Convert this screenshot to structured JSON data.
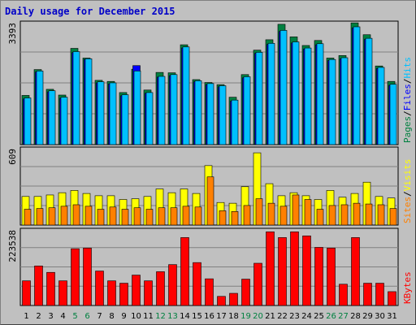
{
  "title": "Daily usage for December 2015",
  "colors": {
    "hits": "#00c0ff",
    "files": "#0000ff",
    "pages": "#008040",
    "visits": "#ffff00",
    "sites": "#ff8000",
    "kbytes": "#ff0000",
    "weekend": "#008040",
    "weekday": "#000000"
  },
  "chart_data": [
    {
      "type": "bar",
      "name": "hits-files-pages",
      "ymax_label": "3393",
      "ymax": 3393,
      "legend": [
        "Hits",
        "Files",
        "Pages"
      ],
      "legend_sep": "/",
      "categories": [
        "1",
        "2",
        "3",
        "4",
        "5",
        "6",
        "7",
        "8",
        "9",
        "10",
        "11",
        "12",
        "13",
        "14",
        "15",
        "16",
        "17",
        "18",
        "19",
        "20",
        "21",
        "22",
        "23",
        "24",
        "25",
        "26",
        "27",
        "28",
        "29",
        "30",
        "31"
      ],
      "series": [
        {
          "name": "Hits",
          "values": [
            1300,
            2050,
            1500,
            1320,
            2590,
            2390,
            1750,
            1720,
            1390,
            2050,
            1450,
            1900,
            1950,
            2720,
            1780,
            1700,
            1640,
            1240,
            1890,
            2570,
            2820,
            3180,
            2860,
            2690,
            2810,
            2370,
            2420,
            3280,
            2960,
            2150,
            1680
          ]
        },
        {
          "name": "Files",
          "values": [
            1270,
            2020,
            1470,
            1290,
            2560,
            2370,
            1720,
            1690,
            1360,
            2200,
            1430,
            1880,
            1920,
            2690,
            1750,
            1670,
            1610,
            1210,
            1860,
            2540,
            2790,
            3150,
            2830,
            2660,
            2780,
            2340,
            2390,
            3250,
            2930,
            2120,
            1650
          ]
        },
        {
          "name": "Pages",
          "values": [
            1370,
            2090,
            1540,
            1380,
            2680,
            2410,
            1790,
            1760,
            1450,
            2100,
            1520,
            2010,
            2000,
            2780,
            1810,
            1730,
            1670,
            1320,
            1950,
            2630,
            2920,
            3350,
            3000,
            2760,
            2900,
            2410,
            2480,
            3390,
            3060,
            2190,
            1760
          ]
        }
      ]
    },
    {
      "type": "bar",
      "name": "visits-sites",
      "ymax_label": "609",
      "ymax": 609,
      "legend": [
        "Visits",
        "Sites"
      ],
      "legend_sep": "/",
      "categories": [
        "1",
        "2",
        "3",
        "4",
        "5",
        "6",
        "7",
        "8",
        "9",
        "10",
        "11",
        "12",
        "13",
        "14",
        "15",
        "16",
        "17",
        "18",
        "19",
        "20",
        "21",
        "22",
        "23",
        "24",
        "25",
        "26",
        "27",
        "28",
        "29",
        "30",
        "31"
      ],
      "series": [
        {
          "name": "Visits",
          "values": [
            228,
            228,
            240,
            258,
            276,
            252,
            234,
            234,
            204,
            210,
            228,
            288,
            258,
            288,
            252,
            474,
            180,
            174,
            306,
            576,
            330,
            234,
            258,
            234,
            204,
            276,
            222,
            252,
            342,
            228,
            216
          ]
        },
        {
          "name": "Sites",
          "values": [
            126,
            132,
            138,
            150,
            162,
            150,
            126,
            144,
            126,
            138,
            126,
            138,
            138,
            150,
            144,
            384,
            114,
            108,
            156,
            210,
            174,
            150,
            240,
            204,
            126,
            156,
            162,
            174,
            168,
            162,
            132
          ]
        }
      ]
    },
    {
      "type": "bar",
      "name": "kbytes",
      "ymax_label": "223538",
      "ymax": 223538,
      "legend": [
        "KBytes"
      ],
      "legend_sep": "",
      "categories": [
        "1",
        "2",
        "3",
        "4",
        "5",
        "6",
        "7",
        "8",
        "9",
        "10",
        "11",
        "12",
        "13",
        "14",
        "15",
        "16",
        "17",
        "18",
        "19",
        "20",
        "21",
        "22",
        "23",
        "24",
        "25",
        "26",
        "27",
        "28",
        "29",
        "30",
        "31"
      ],
      "series": [
        {
          "name": "KBytes",
          "values": [
            73000,
            117000,
            98000,
            73000,
            168000,
            170000,
            102000,
            73000,
            66000,
            90000,
            73000,
            100000,
            121000,
            201000,
            127000,
            79000,
            27000,
            36000,
            78000,
            125000,
            218000,
            201000,
            218000,
            206000,
            172000,
            170000,
            63000,
            201000,
            66000,
            66000,
            41000
          ]
        }
      ]
    }
  ],
  "weekend_days": [
    5,
    6,
    12,
    13,
    19,
    20,
    26,
    27
  ]
}
